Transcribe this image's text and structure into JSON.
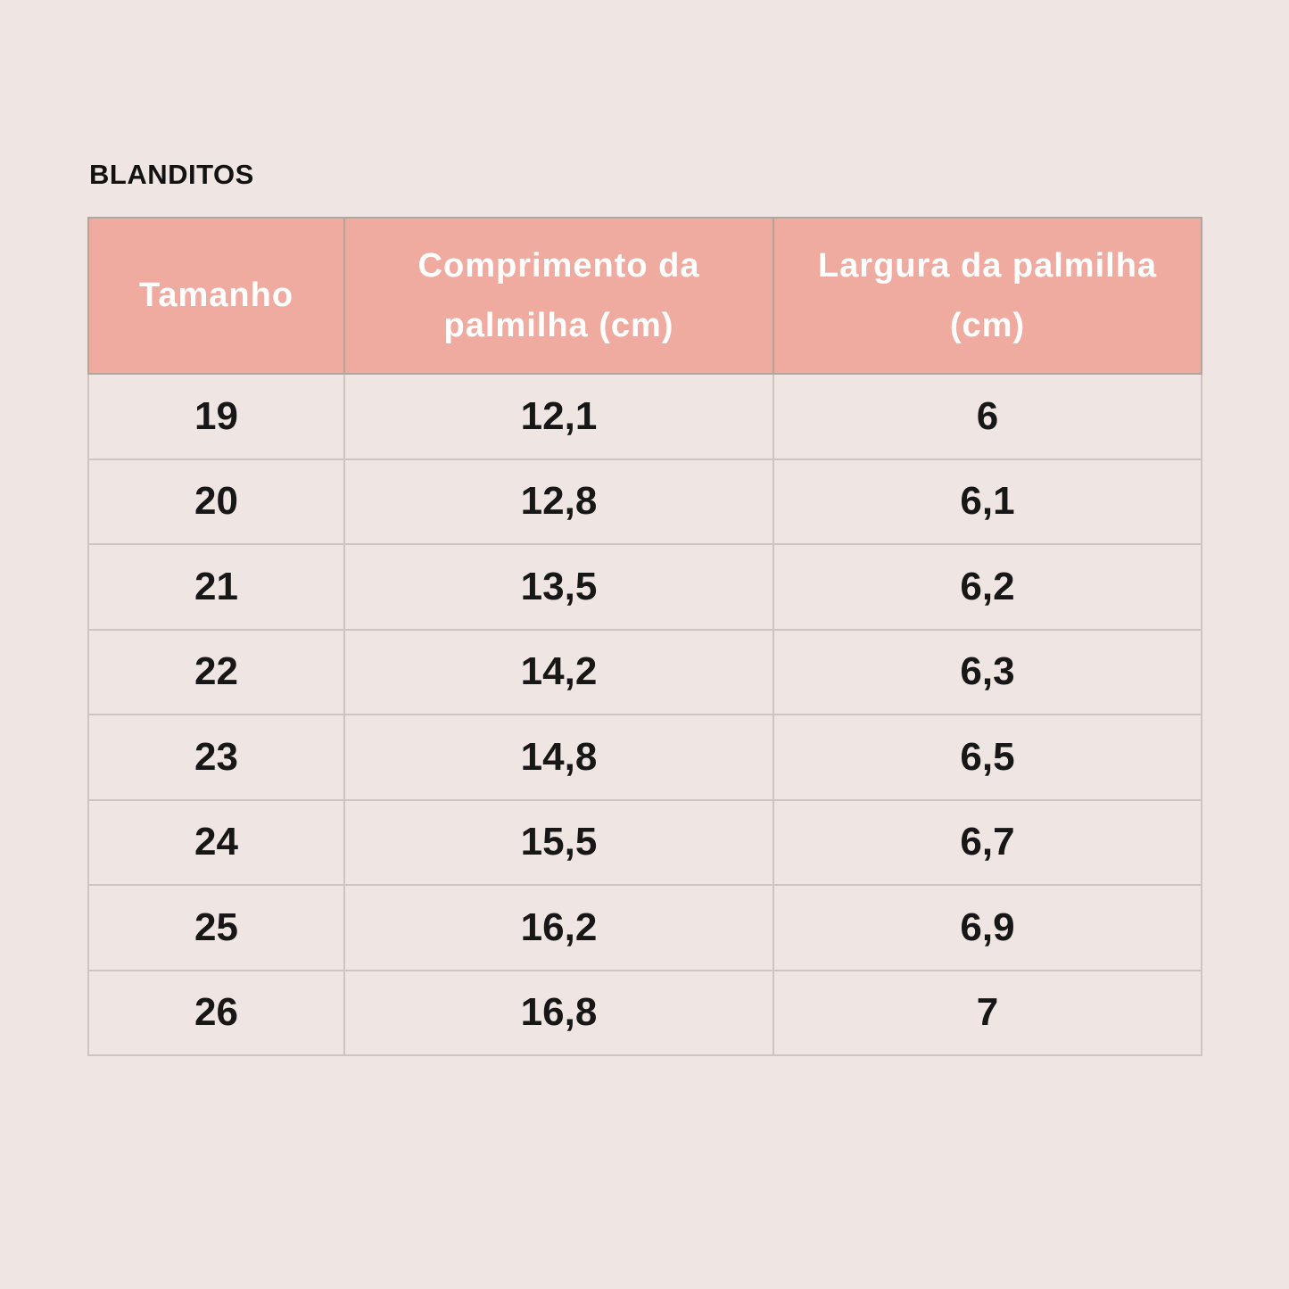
{
  "page": {
    "title": "BLANDITOS"
  },
  "colors": {
    "background": "#efe6e3",
    "header_background": "#f0aba0",
    "header_text": "#ffffff",
    "body_text": "#171717",
    "border": "#cfc4c1",
    "title_text": "#121212"
  },
  "chart_data": {
    "type": "table",
    "title": "BLANDITOS",
    "columns": [
      "Tamanho",
      "Comprimento da palmilha (cm)",
      "Largura da palmilha (cm)"
    ],
    "rows": [
      [
        "19",
        "12,1",
        "6"
      ],
      [
        "20",
        "12,8",
        "6,1"
      ],
      [
        "21",
        "13,5",
        "6,2"
      ],
      [
        "22",
        "14,2",
        "6,3"
      ],
      [
        "23",
        "14,8",
        "6,5"
      ],
      [
        "24",
        "15,5",
        "6,7"
      ],
      [
        "25",
        "16,2",
        "6,9"
      ],
      [
        "26",
        "16,8",
        "7"
      ]
    ]
  }
}
